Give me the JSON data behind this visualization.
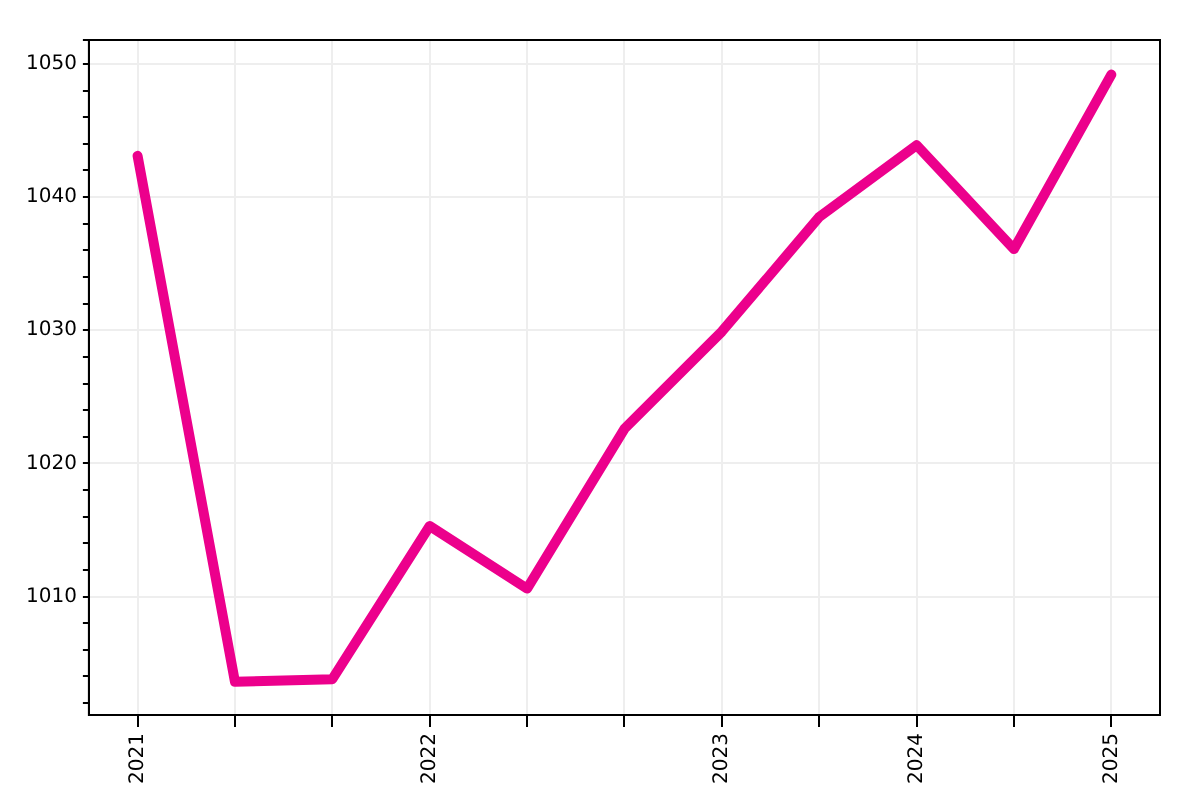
{
  "chart_data": {
    "type": "line",
    "categories": [
      "2021",
      null,
      null,
      "2022",
      null,
      null,
      "2023",
      null,
      "2024",
      null,
      "2025"
    ],
    "series": [
      {
        "color": "#ec008c",
        "values": [
          1043.1,
          1003.6,
          1003.8,
          1015.3,
          1010.6,
          1022.6,
          1029.9,
          1038.5,
          1043.9,
          1036.1,
          1049.2
        ]
      }
    ],
    "ylim": [
      1001.1,
      1051.8
    ],
    "yticks": [
      {
        "value": 1002,
        "label": null
      },
      {
        "value": 1004,
        "label": null
      },
      {
        "value": 1006,
        "label": null
      },
      {
        "value": 1008,
        "label": null
      },
      1010,
      {
        "value": 1012,
        "label": null
      },
      {
        "value": 1014,
        "label": null
      },
      {
        "value": 1016,
        "label": null
      },
      {
        "value": 1018,
        "label": null
      },
      1020,
      {
        "value": 1022,
        "label": null
      },
      {
        "value": 1024,
        "label": null
      },
      {
        "value": 1026,
        "label": null
      },
      {
        "value": 1028,
        "label": null
      },
      1030,
      {
        "value": 1032,
        "label": null
      },
      {
        "value": 1034,
        "label": null
      },
      {
        "value": 1036,
        "label": null
      },
      {
        "value": 1038,
        "label": null
      },
      1040,
      {
        "value": 1042,
        "label": null
      },
      {
        "value": 1044,
        "label": null
      },
      {
        "value": 1046,
        "label": null
      },
      {
        "value": 1048,
        "label": null
      },
      1050,
      {
        "value": 1051.8,
        "label": null
      }
    ],
    "grid": true,
    "marker": "none",
    "line_style": "solid",
    "legend": false
  }
}
